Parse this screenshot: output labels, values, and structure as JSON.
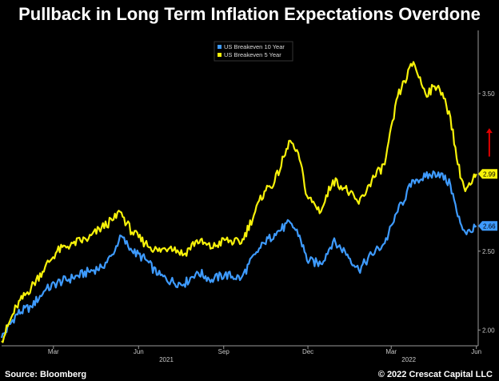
{
  "chart_data": {
    "type": "line",
    "title": "Pullback in Long Term Inflation Expectations Overdone",
    "xlabel": "",
    "ylabel": "",
    "x_range": [
      "2021-01-04",
      "2022-06-03"
    ],
    "y_range": [
      1.9,
      3.9
    ],
    "y_ticks": [
      2.0,
      2.5,
      3.5
    ],
    "y_tick_labels": [
      "2.00",
      "2.50",
      "3.50"
    ],
    "x_ticks": [
      {
        "date": "2021-03-01",
        "label": "Mar"
      },
      {
        "date": "2021-06-01",
        "label": "Jun"
      },
      {
        "date": "2021-09-01",
        "label": "Sep"
      },
      {
        "date": "2021-12-01",
        "label": "Dec"
      },
      {
        "date": "2022-03-01",
        "label": "Mar"
      },
      {
        "date": "2022-06-01",
        "label": "Jun"
      }
    ],
    "year_labels": [
      {
        "label": "2021",
        "center_date": "2021-07-01"
      },
      {
        "label": "2022",
        "center_date": "2022-03-20"
      }
    ],
    "legend_position": "top-center",
    "grid": false,
    "series": [
      {
        "name": "US Breakeven 10 Year",
        "color": "#3e9bff",
        "last_value_label": "2.66",
        "points": [
          [
            "2021-01-04",
            1.95
          ],
          [
            "2021-01-20",
            2.1
          ],
          [
            "2021-02-05",
            2.15
          ],
          [
            "2021-02-20",
            2.25
          ],
          [
            "2021-03-05",
            2.3
          ],
          [
            "2021-03-22",
            2.33
          ],
          [
            "2021-04-08",
            2.37
          ],
          [
            "2021-04-22",
            2.4
          ],
          [
            "2021-05-05",
            2.48
          ],
          [
            "2021-05-12",
            2.6
          ],
          [
            "2021-05-25",
            2.5
          ],
          [
            "2021-06-08",
            2.45
          ],
          [
            "2021-06-22",
            2.35
          ],
          [
            "2021-07-06",
            2.31
          ],
          [
            "2021-07-20",
            2.29
          ],
          [
            "2021-08-03",
            2.37
          ],
          [
            "2021-08-19",
            2.32
          ],
          [
            "2021-09-02",
            2.35
          ],
          [
            "2021-09-20",
            2.33
          ],
          [
            "2021-10-05",
            2.48
          ],
          [
            "2021-10-15",
            2.55
          ],
          [
            "2021-10-26",
            2.61
          ],
          [
            "2021-11-12",
            2.68
          ],
          [
            "2021-11-22",
            2.6
          ],
          [
            "2021-11-30",
            2.44
          ],
          [
            "2021-12-15",
            2.42
          ],
          [
            "2021-12-28",
            2.56
          ],
          [
            "2022-01-10",
            2.5
          ],
          [
            "2022-01-25",
            2.38
          ],
          [
            "2022-02-08",
            2.48
          ],
          [
            "2022-02-22",
            2.55
          ],
          [
            "2022-03-08",
            2.75
          ],
          [
            "2022-03-25",
            2.95
          ],
          [
            "2022-04-07",
            2.97
          ],
          [
            "2022-04-21",
            3.0
          ],
          [
            "2022-05-04",
            2.92
          ],
          [
            "2022-05-12",
            2.72
          ],
          [
            "2022-05-20",
            2.62
          ],
          [
            "2022-05-27",
            2.62
          ],
          [
            "2022-06-01",
            2.66
          ]
        ]
      },
      {
        "name": "US Breakeven 5 Year",
        "color": "#f7f20a",
        "last_value_label": "2.99",
        "points": [
          [
            "2021-01-04",
            1.93
          ],
          [
            "2021-01-20",
            2.15
          ],
          [
            "2021-02-05",
            2.27
          ],
          [
            "2021-02-20",
            2.4
          ],
          [
            "2021-03-05",
            2.5
          ],
          [
            "2021-03-22",
            2.55
          ],
          [
            "2021-04-08",
            2.58
          ],
          [
            "2021-04-22",
            2.65
          ],
          [
            "2021-05-05",
            2.7
          ],
          [
            "2021-05-12",
            2.75
          ],
          [
            "2021-05-25",
            2.62
          ],
          [
            "2021-06-08",
            2.55
          ],
          [
            "2021-06-22",
            2.5
          ],
          [
            "2021-07-06",
            2.53
          ],
          [
            "2021-07-20",
            2.48
          ],
          [
            "2021-08-03",
            2.57
          ],
          [
            "2021-08-19",
            2.52
          ],
          [
            "2021-09-02",
            2.57
          ],
          [
            "2021-09-20",
            2.55
          ],
          [
            "2021-10-05",
            2.75
          ],
          [
            "2021-10-15",
            2.88
          ],
          [
            "2021-10-26",
            2.94
          ],
          [
            "2021-11-12",
            3.2
          ],
          [
            "2021-11-22",
            3.08
          ],
          [
            "2021-11-30",
            2.85
          ],
          [
            "2021-12-15",
            2.75
          ],
          [
            "2021-12-28",
            2.95
          ],
          [
            "2022-01-10",
            2.9
          ],
          [
            "2022-01-25",
            2.8
          ],
          [
            "2022-02-08",
            2.95
          ],
          [
            "2022-02-22",
            3.05
          ],
          [
            "2022-03-08",
            3.48
          ],
          [
            "2022-03-25",
            3.7
          ],
          [
            "2022-04-07",
            3.5
          ],
          [
            "2022-04-21",
            3.55
          ],
          [
            "2022-05-04",
            3.35
          ],
          [
            "2022-05-12",
            3.05
          ],
          [
            "2022-05-20",
            2.88
          ],
          [
            "2022-05-27",
            2.93
          ],
          [
            "2022-06-01",
            2.99
          ]
        ]
      }
    ],
    "annotations": [
      {
        "type": "arrow-up",
        "color": "#e00000",
        "date": "2022-06-15",
        "y_from": 3.1,
        "y_to": 3.28
      }
    ]
  },
  "footer": {
    "source": "Source: Bloomberg",
    "copyright": "© 2022 Crescat Capital LLC"
  }
}
